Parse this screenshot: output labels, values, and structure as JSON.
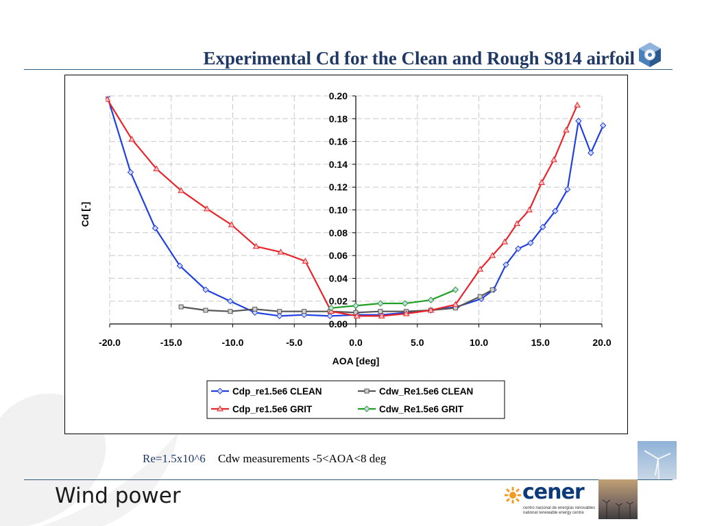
{
  "slide": {
    "title": "Experimental Cd for the Clean and Rough S814 airfoil",
    "caption_re": "Re=1.5x10^6",
    "caption_note": "Cdw measurements -5<AOA<8 deg",
    "footer": "Wind power",
    "logo": {
      "name": "cener",
      "line1": "centro nacional de energías renovables",
      "line2": "national renewable energy centre"
    }
  },
  "chart_data": {
    "type": "line",
    "title": "",
    "xlabel": "AOA [deg]",
    "ylabel": "Cd [-]",
    "xlim": [
      -20,
      20
    ],
    "ylim": [
      0,
      0.2
    ],
    "xticks": [
      "-20.0",
      "-15.0",
      "-10.0",
      "-5.0",
      "0.0",
      "5.0",
      "10.0",
      "15.0",
      "20.0"
    ],
    "yticks": [
      "0.00",
      "0.02",
      "0.04",
      "0.06",
      "0.08",
      "0.10",
      "0.12",
      "0.14",
      "0.16",
      "0.18",
      "0.20"
    ],
    "grid": true,
    "legend_position": "bottom-center",
    "series": [
      {
        "name": "Cdp_re1.5e6 CLEAN",
        "color": "#1f3fe0",
        "marker": "diamond",
        "x": [
          -20.2,
          -18.3,
          -16.3,
          -14.3,
          -12.2,
          -10.2,
          -8.2,
          -6.2,
          -4.2,
          -2.1,
          0.1,
          2.1,
          4.1,
          6.1,
          8.2,
          10.2,
          11.2,
          12.2,
          13.2,
          14.2,
          15.2,
          16.2,
          17.2,
          18.1,
          19.1,
          20.1
        ],
        "y": [
          0.2,
          0.133,
          0.084,
          0.051,
          0.03,
          0.02,
          0.01,
          0.007,
          0.008,
          0.007,
          0.008,
          0.008,
          0.01,
          0.012,
          0.015,
          0.022,
          0.03,
          0.052,
          0.066,
          0.071,
          0.085,
          0.099,
          0.118,
          0.178,
          0.15,
          0.174
        ]
      },
      {
        "name": "Cdw_Re1.5e6 CLEAN",
        "color": "#555555",
        "marker": "square",
        "x": [
          -14.2,
          -12.2,
          -10.2,
          -8.2,
          -6.2,
          -4.2,
          -2.1,
          0.0,
          2.0,
          4.1,
          6.1,
          8.1,
          10.1,
          11.1
        ],
        "y": [
          0.015,
          0.012,
          0.011,
          0.013,
          0.011,
          0.011,
          0.011,
          0.01,
          0.011,
          0.011,
          0.012,
          0.014,
          0.024,
          0.03
        ]
      },
      {
        "name": "Cdp_re1.5e6 GRIT",
        "color": "#e8242a",
        "marker": "triangle",
        "x": [
          -20.2,
          -18.2,
          -16.2,
          -14.2,
          -12.1,
          -10.1,
          -8.1,
          -6.1,
          -4.1,
          -2.0,
          0.1,
          2.1,
          4.1,
          6.1,
          8.1,
          10.1,
          11.1,
          12.1,
          13.1,
          14.1,
          15.1,
          16.1,
          17.1,
          18.0
        ],
        "y": [
          0.197,
          0.162,
          0.136,
          0.117,
          0.101,
          0.087,
          0.068,
          0.063,
          0.055,
          0.011,
          0.007,
          0.007,
          0.009,
          0.012,
          0.017,
          0.048,
          0.06,
          0.072,
          0.088,
          0.1,
          0.124,
          0.144,
          0.17,
          0.192
        ]
      },
      {
        "name": "Cdw_Re1.5e6 GRIT",
        "color": "#1e9e22",
        "marker": "diamond",
        "x": [
          -2.0,
          0.0,
          2.0,
          4.0,
          6.1,
          8.1
        ],
        "y": [
          0.014,
          0.016,
          0.018,
          0.018,
          0.021,
          0.03
        ]
      }
    ]
  }
}
